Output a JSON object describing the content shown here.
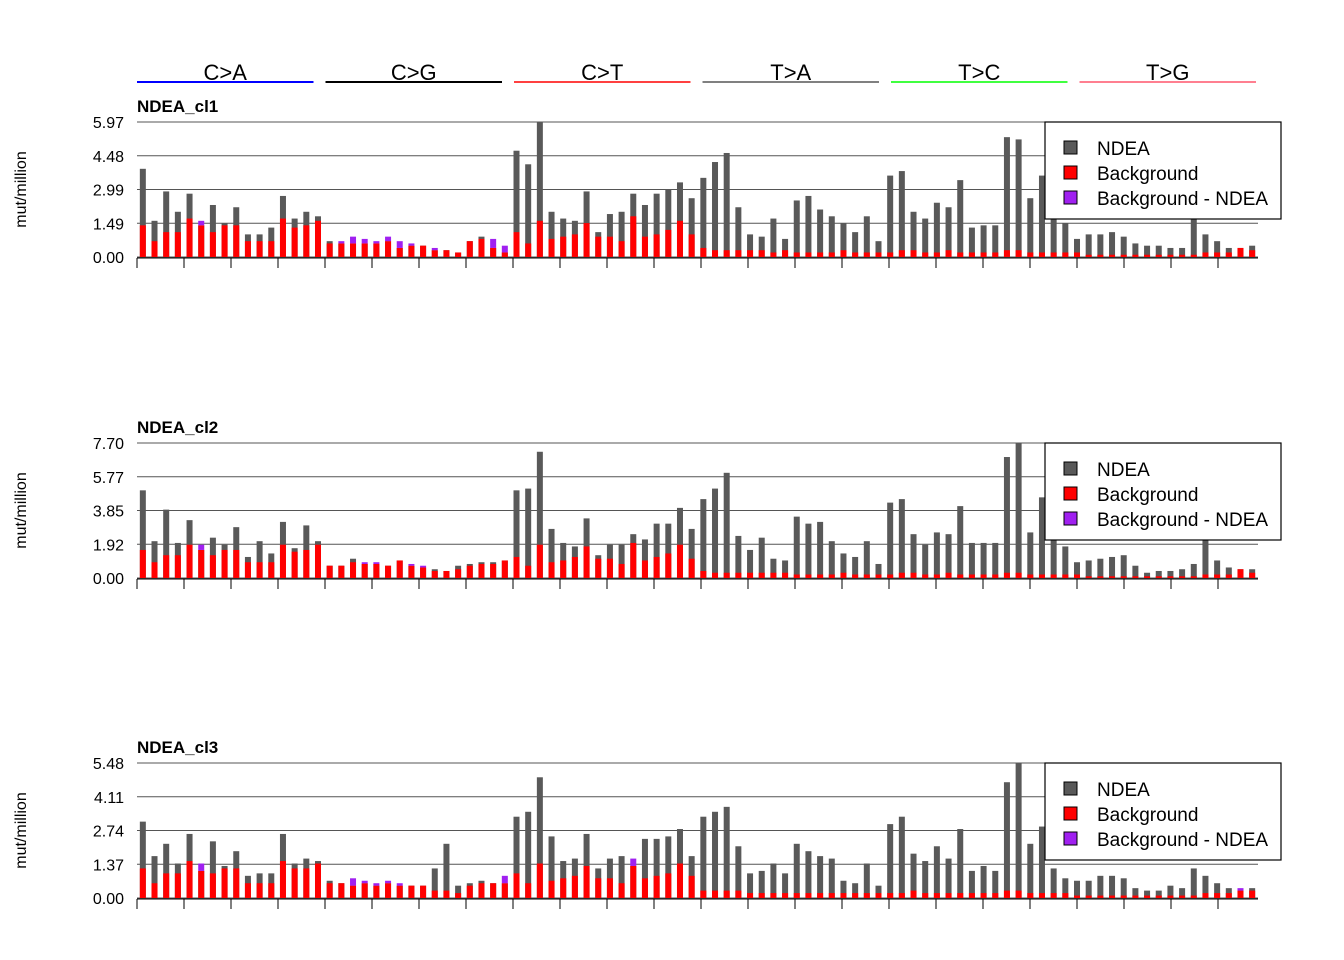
{
  "groups": [
    {
      "label": "C>A",
      "color": "#0000ff"
    },
    {
      "label": "C>G",
      "color": "#000000"
    },
    {
      "label": "C>T",
      "color": "#ff4040"
    },
    {
      "label": "T>A",
      "color": "#808080"
    },
    {
      "label": "T>C",
      "color": "#40ff40"
    },
    {
      "label": "T>G",
      "color": "#ff7f90"
    }
  ],
  "colors": {
    "total": "#595959",
    "background": "#ff0000",
    "diff": "#a020f0"
  },
  "legend": [
    "NDEA",
    "Background",
    "Background - NDEA"
  ],
  "chart_data": [
    {
      "type": "bar",
      "title": "NDEA_cl1",
      "ylabel": "mut/million",
      "ylim": [
        0,
        5.97
      ],
      "yticks": [
        "0.00",
        "1.49",
        "2.99",
        "4.48",
        "5.97"
      ],
      "series": [
        {
          "name": "NDEA",
          "values": [
            3.9,
            1.6,
            2.9,
            2.0,
            2.8,
            1.4,
            2.3,
            1.5,
            2.2,
            1.0,
            1.0,
            1.3,
            2.7,
            1.7,
            2.0,
            1.8,
            0.7,
            0.6,
            0.6,
            0.6,
            0.6,
            0.7,
            0.4,
            0.5,
            0.5,
            0.3,
            0.3,
            0.2,
            0.7,
            0.9,
            0.4,
            0.2,
            4.7,
            4.1,
            5.97,
            2.0,
            1.7,
            1.6,
            2.9,
            1.1,
            1.9,
            2.0,
            2.8,
            2.3,
            2.8,
            3.0,
            3.3,
            2.6,
            3.5,
            4.2,
            4.6,
            2.2,
            1.0,
            0.9,
            1.7,
            0.8,
            2.5,
            2.7,
            2.1,
            1.8,
            1.5,
            1.1,
            1.8,
            0.7,
            3.6,
            3.8,
            2.0,
            1.7,
            2.4,
            2.2,
            3.4,
            1.3,
            1.4,
            1.4,
            5.3,
            5.2,
            2.6,
            3.6,
            2.0,
            1.5,
            0.8,
            1.0,
            1.0,
            1.1,
            0.9,
            0.6,
            0.5,
            0.5,
            0.4,
            0.4,
            2.0,
            1.0,
            0.7,
            0.4,
            0.4,
            0.5,
            0.5,
            0.4
          ]
        },
        {
          "name": "Background",
          "values": [
            1.4,
            0.7,
            1.1,
            1.1,
            1.7,
            1.6,
            1.1,
            1.4,
            1.4,
            0.7,
            0.7,
            0.7,
            1.7,
            1.3,
            1.4,
            1.6,
            0.6,
            0.7,
            0.9,
            0.8,
            0.7,
            0.9,
            0.7,
            0.6,
            0.5,
            0.4,
            0.3,
            0.2,
            0.7,
            0.8,
            0.8,
            0.5,
            1.1,
            0.6,
            1.6,
            0.8,
            0.9,
            1.0,
            1.5,
            0.9,
            0.9,
            0.7,
            1.8,
            0.9,
            1.0,
            1.2,
            1.6,
            1.0,
            0.4,
            0.3,
            0.3,
            0.3,
            0.3,
            0.3,
            0.2,
            0.3,
            0.2,
            0.2,
            0.2,
            0.2,
            0.3,
            0.2,
            0.2,
            0.2,
            0.2,
            0.3,
            0.3,
            0.2,
            0.2,
            0.3,
            0.2,
            0.2,
            0.2,
            0.2,
            0.3,
            0.3,
            0.2,
            0.2,
            0.2,
            0.2,
            0.2,
            0.1,
            0.1,
            0.1,
            0.1,
            0.1,
            0.1,
            0.1,
            0.1,
            0.1,
            0.1,
            0.2,
            0.2,
            0.2,
            0.4,
            0.3,
            0.5,
            0.3
          ]
        }
      ]
    },
    {
      "type": "bar",
      "title": "NDEA_cl2",
      "ylabel": "mut/million",
      "ylim": [
        0,
        7.7
      ],
      "yticks": [
        "0.00",
        "1.92",
        "3.85",
        "5.77",
        "7.70"
      ],
      "series": [
        {
          "name": "NDEA",
          "values": [
            5.0,
            2.1,
            3.9,
            2.0,
            3.3,
            1.6,
            2.3,
            1.9,
            2.9,
            1.2,
            2.1,
            1.4,
            3.2,
            1.7,
            3.0,
            2.1,
            0.7,
            0.7,
            1.1,
            0.8,
            0.8,
            0.7,
            1.0,
            0.7,
            0.6,
            0.5,
            0.4,
            0.7,
            0.8,
            0.9,
            0.9,
            1.0,
            5.0,
            5.1,
            7.2,
            2.8,
            2.0,
            1.8,
            3.4,
            1.3,
            1.9,
            1.9,
            2.5,
            2.2,
            3.1,
            3.1,
            4.0,
            2.8,
            4.5,
            5.1,
            6.0,
            2.4,
            1.6,
            2.3,
            1.1,
            1.0,
            3.5,
            3.1,
            3.2,
            2.1,
            1.4,
            1.2,
            2.1,
            0.8,
            4.3,
            4.5,
            2.5,
            1.9,
            2.6,
            2.5,
            4.1,
            2.0,
            2.0,
            2.0,
            6.9,
            7.7,
            2.6,
            4.6,
            2.2,
            1.8,
            0.9,
            1.0,
            1.1,
            1.2,
            1.3,
            0.7,
            0.3,
            0.4,
            0.4,
            0.5,
            0.8,
            2.2,
            1.0,
            0.6,
            0.5,
            0.5,
            0.6,
            0.4
          ]
        },
        {
          "name": "Background",
          "values": [
            1.6,
            0.9,
            1.3,
            1.3,
            1.9,
            1.9,
            1.3,
            1.6,
            1.6,
            0.9,
            0.9,
            0.9,
            1.9,
            1.5,
            1.6,
            1.9,
            0.7,
            0.7,
            0.9,
            0.9,
            0.9,
            0.7,
            1.0,
            0.8,
            0.7,
            0.4,
            0.4,
            0.5,
            0.7,
            0.8,
            0.8,
            1.0,
            1.2,
            0.7,
            1.9,
            0.9,
            1.0,
            1.2,
            1.8,
            1.1,
            1.1,
            0.8,
            2.0,
            1.0,
            1.2,
            1.4,
            1.9,
            1.1,
            0.4,
            0.3,
            0.3,
            0.3,
            0.3,
            0.3,
            0.3,
            0.3,
            0.2,
            0.2,
            0.2,
            0.2,
            0.3,
            0.2,
            0.2,
            0.2,
            0.2,
            0.3,
            0.3,
            0.2,
            0.2,
            0.3,
            0.2,
            0.2,
            0.2,
            0.2,
            0.3,
            0.3,
            0.2,
            0.2,
            0.2,
            0.2,
            0.2,
            0.1,
            0.1,
            0.1,
            0.1,
            0.1,
            0.1,
            0.1,
            0.1,
            0.1,
            0.1,
            0.2,
            0.2,
            0.2,
            0.5,
            0.3,
            0.6,
            0.4
          ]
        }
      ]
    },
    {
      "type": "bar",
      "title": "NDEA_cl3",
      "ylabel": "mut/million",
      "ylim": [
        0,
        5.48
      ],
      "yticks": [
        "0.00",
        "1.37",
        "2.74",
        "4.11",
        "5.48"
      ],
      "series": [
        {
          "name": "NDEA",
          "values": [
            3.1,
            1.7,
            2.2,
            1.4,
            2.6,
            1.1,
            2.3,
            1.3,
            1.9,
            0.9,
            1.0,
            1.0,
            2.6,
            1.4,
            1.6,
            1.5,
            0.7,
            0.6,
            0.5,
            0.6,
            0.5,
            0.6,
            0.5,
            0.5,
            0.5,
            1.2,
            2.2,
            0.5,
            0.6,
            0.7,
            0.6,
            0.6,
            3.3,
            3.5,
            4.9,
            2.5,
            1.5,
            1.6,
            2.6,
            1.2,
            1.6,
            1.7,
            1.3,
            2.4,
            2.4,
            2.5,
            2.8,
            1.7,
            3.3,
            3.5,
            3.7,
            2.1,
            1.0,
            1.1,
            1.4,
            1.0,
            2.2,
            1.9,
            1.7,
            1.6,
            0.7,
            0.6,
            1.4,
            0.5,
            3.0,
            3.3,
            1.8,
            1.5,
            2.1,
            1.6,
            2.8,
            1.1,
            1.3,
            1.1,
            4.7,
            5.48,
            2.2,
            2.9,
            1.2,
            0.8,
            0.7,
            0.7,
            0.9,
            0.9,
            0.8,
            0.4,
            0.3,
            0.3,
            0.5,
            0.4,
            1.2,
            0.9,
            0.6,
            0.4,
            0.3,
            0.4,
            0.4,
            0.4
          ]
        },
        {
          "name": "Background",
          "values": [
            1.2,
            0.6,
            1.0,
            1.0,
            1.5,
            1.4,
            1.0,
            1.2,
            1.2,
            0.6,
            0.6,
            0.6,
            1.5,
            1.2,
            1.2,
            1.4,
            0.6,
            0.6,
            0.8,
            0.7,
            0.6,
            0.7,
            0.6,
            0.5,
            0.5,
            0.3,
            0.3,
            0.2,
            0.5,
            0.6,
            0.6,
            0.9,
            1.0,
            0.6,
            1.4,
            0.7,
            0.8,
            0.9,
            1.3,
            0.8,
            0.8,
            0.6,
            1.6,
            0.8,
            0.9,
            1.0,
            1.4,
            0.9,
            0.3,
            0.3,
            0.3,
            0.3,
            0.2,
            0.2,
            0.2,
            0.2,
            0.2,
            0.2,
            0.2,
            0.2,
            0.2,
            0.2,
            0.2,
            0.2,
            0.2,
            0.2,
            0.3,
            0.2,
            0.2,
            0.2,
            0.2,
            0.2,
            0.2,
            0.2,
            0.3,
            0.3,
            0.2,
            0.2,
            0.2,
            0.2,
            0.1,
            0.1,
            0.1,
            0.1,
            0.1,
            0.1,
            0.1,
            0.1,
            0.1,
            0.1,
            0.1,
            0.2,
            0.2,
            0.2,
            0.4,
            0.3,
            0.4,
            0.3
          ]
        }
      ]
    }
  ]
}
